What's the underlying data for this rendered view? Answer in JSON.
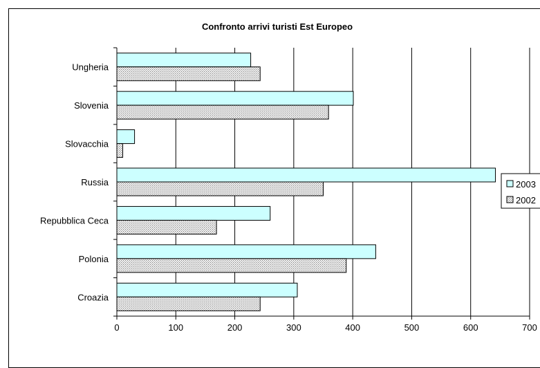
{
  "chart_data": {
    "type": "bar",
    "orientation": "horizontal",
    "title": "Confronto arrivi turisti Est Europeo",
    "xlabel": "",
    "ylabel": "",
    "categories": [
      "Ungheria",
      "Slovenia",
      "Slovacchia",
      "Russia",
      "Repubblica Ceca",
      "Polonia",
      "Croazia"
    ],
    "series": [
      {
        "name": "2003",
        "values": [
          227,
          401,
          30,
          642,
          260,
          439,
          306
        ],
        "color": "#ccffff",
        "pattern": "solid"
      },
      {
        "name": "2002",
        "values": [
          243,
          359,
          10,
          350,
          169,
          389,
          243
        ],
        "color": "#d9d9d9",
        "pattern": "dotted"
      }
    ],
    "xlim": [
      0,
      700
    ],
    "xticks": [
      0,
      100,
      200,
      300,
      400,
      500,
      600,
      700
    ],
    "grid": "vertical",
    "legend_position": "right"
  }
}
